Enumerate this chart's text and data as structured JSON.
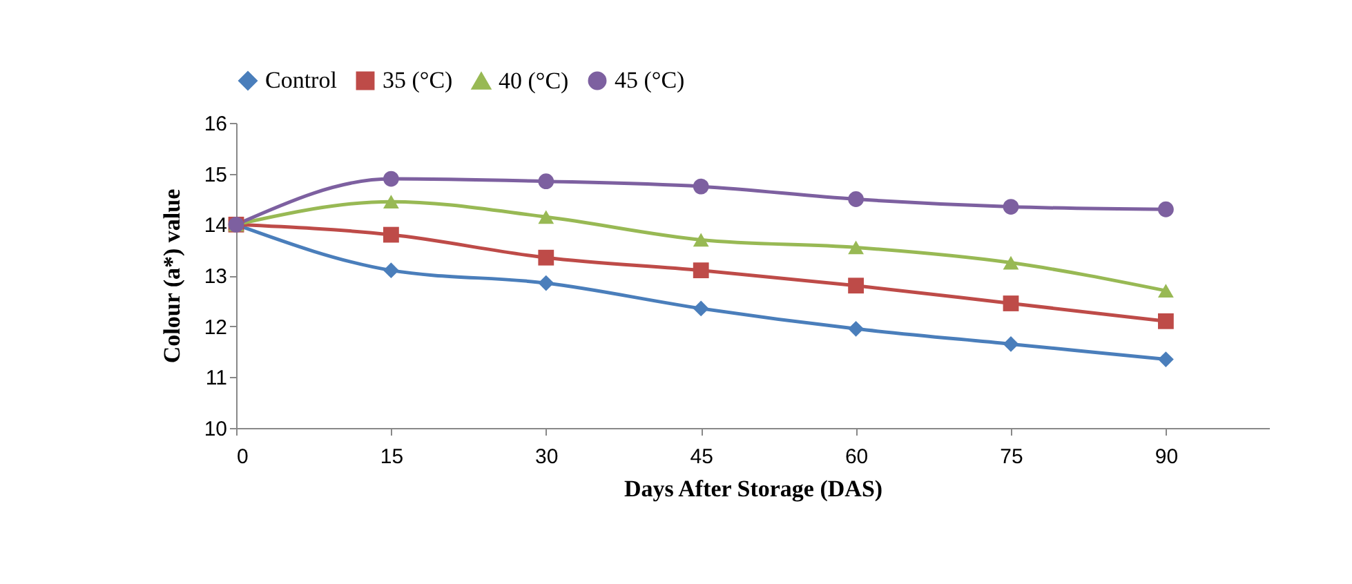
{
  "chart_data": {
    "type": "line",
    "xlabel": "Days After  Storage (DAS)",
    "ylabel": "Colour (a*) value",
    "x": [
      0,
      15,
      30,
      45,
      60,
      75,
      90
    ],
    "series": [
      {
        "name": "Control",
        "color": "#4a7ebb",
        "marker": "diamond",
        "values": [
          14,
          13.1,
          12.85,
          12.35,
          11.95,
          11.65,
          11.35
        ]
      },
      {
        "name": "35 (°C)",
        "color": "#be4b48",
        "marker": "square",
        "values": [
          14,
          13.8,
          13.35,
          13.1,
          12.8,
          12.45,
          12.1
        ]
      },
      {
        "name": "40 (°C)",
        "color": "#98b954",
        "marker": "triangle",
        "values": [
          14,
          14.45,
          14.15,
          13.7,
          13.55,
          13.25,
          12.7
        ]
      },
      {
        "name": "45 (°C)",
        "color": "#7d60a0",
        "marker": "circle",
        "values": [
          14,
          14.9,
          14.85,
          14.75,
          14.5,
          14.35,
          14.3
        ]
      }
    ],
    "xlim": [
      0,
      100
    ],
    "xticks": [
      0,
      15,
      30,
      45,
      60,
      75,
      90
    ],
    "ylim": [
      10,
      16
    ],
    "yticks": [
      10,
      11,
      12,
      13,
      14,
      15,
      16
    ],
    "grid": false,
    "legend": "top",
    "line_style": "solid"
  }
}
